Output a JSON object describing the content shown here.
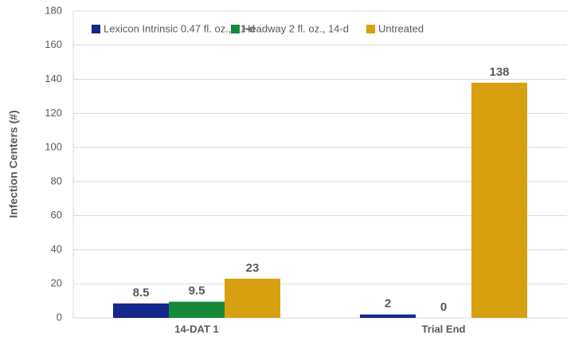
{
  "chart_data": {
    "type": "bar",
    "categories": [
      "14-DAT 1",
      "Trial End"
    ],
    "series": [
      {
        "name": "Lexicon Intrinsic 0.47 fl. oz., 21-d",
        "color": "#14288c",
        "values": [
          8.5,
          2
        ]
      },
      {
        "name": "Headway 2 fl. oz., 14-d",
        "color": "#16883a",
        "values": [
          9.5,
          0
        ]
      },
      {
        "name": "Untreated",
        "color": "#d8a011",
        "values": [
          23,
          138
        ]
      }
    ],
    "ylabel": "Infection Centers (#)",
    "ylim": [
      0,
      180
    ],
    "yticks": [
      0,
      20,
      40,
      60,
      80,
      100,
      120,
      140,
      160,
      180
    ],
    "grid": true,
    "legend": "top"
  }
}
